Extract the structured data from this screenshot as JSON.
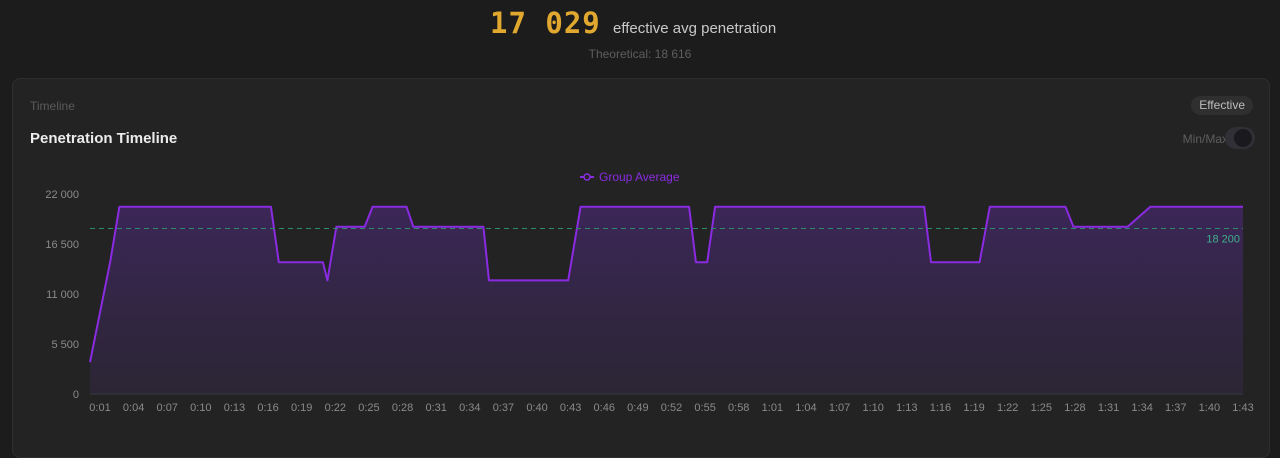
{
  "header": {
    "value": "17 029",
    "caption": "effective avg penetration",
    "theoretical": "Theoretical: 18 616"
  },
  "card": {
    "section_label": "Timeline",
    "mode_badge": "Effective",
    "toggle_label": "Min/Max"
  },
  "colors": {
    "series": "#8a2be2",
    "reference": "#2f8a6a",
    "accent": "#e0a82e"
  },
  "chart_data": {
    "type": "area",
    "title": "Penetration Timeline",
    "legend": [
      "Group Average"
    ],
    "legend_position": "top-center",
    "ylim": [
      0,
      22000
    ],
    "y_ticks": [
      0,
      5500,
      11000,
      16500,
      22000
    ],
    "y_tick_labels": [
      "0",
      "5 500",
      "11 000",
      "16 500",
      "22 000"
    ],
    "x_tick_labels": [
      "0:01",
      "0:04",
      "0:07",
      "0:10",
      "0:13",
      "0:16",
      "0:19",
      "0:22",
      "0:25",
      "0:28",
      "0:31",
      "0:34",
      "0:37",
      "0:40",
      "0:43",
      "0:46",
      "0:49",
      "0:52",
      "0:55",
      "0:58",
      "1:01",
      "1:04",
      "1:07",
      "1:10",
      "1:13",
      "1:16",
      "1:19",
      "1:22",
      "1:25",
      "1:28",
      "1:31",
      "1:34",
      "1:37",
      "1:40",
      "1:43"
    ],
    "x_unit": "seconds",
    "reference_line": {
      "value": 18200,
      "label": "18 200"
    },
    "series": [
      {
        "name": "Group Average",
        "x": [
          1,
          2.8,
          3.6,
          17.0,
          17.7,
          21.6,
          22.0,
          22.8,
          25.3,
          26.0,
          29.0,
          29.6,
          35.8,
          36.3,
          43.3,
          44.4,
          54.0,
          54.6,
          55.6,
          56.3,
          68.0,
          74.8,
          75.4,
          79.7,
          80.6,
          87.3,
          88.0,
          92.2,
          92.8,
          94.8,
          95.6,
          103.0
        ],
        "y": [
          3500,
          14600,
          20600,
          20600,
          14500,
          14500,
          12500,
          18400,
          18400,
          20600,
          20600,
          18400,
          18400,
          12500,
          12500,
          20600,
          20600,
          14500,
          14500,
          20600,
          20600,
          20600,
          14500,
          14500,
          20600,
          20600,
          18400,
          18400,
          18400,
          20600,
          20600,
          20600
        ]
      }
    ],
    "grid": false
  }
}
